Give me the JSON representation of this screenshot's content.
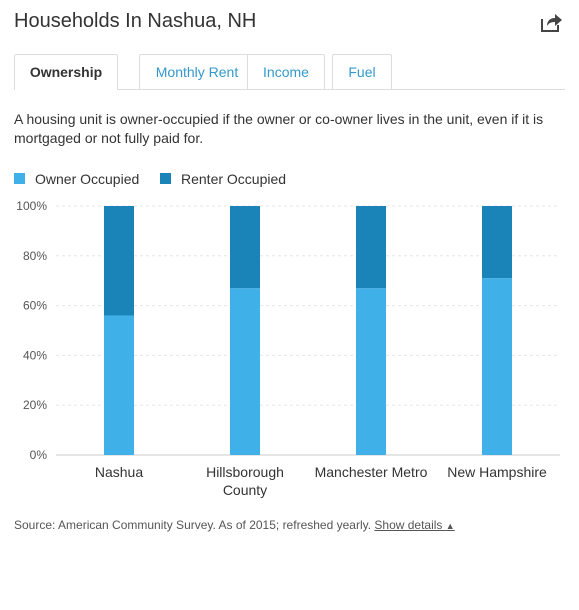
{
  "header": {
    "title": "Households In Nashua, NH",
    "share_icon": "share-icon"
  },
  "tabs": [
    {
      "label": "Ownership",
      "active": true
    },
    {
      "label": "Monthly Rent",
      "active": false
    },
    {
      "label": "Income",
      "active": false
    },
    {
      "label": "Fuel",
      "active": false
    }
  ],
  "description": "A housing unit is owner-occupied if the owner or co-owner lives in the unit, even if it is mortgaged or not fully paid for.",
  "colors": {
    "owner": "#3fb1e8",
    "renter": "#1a84b8",
    "link": "#3399cc"
  },
  "chart_data": {
    "type": "bar",
    "stacked": true,
    "categories": [
      "Nashua",
      "Hillsborough County",
      "Manchester Metro",
      "New Hampshire"
    ],
    "category_lines": [
      [
        "Nashua"
      ],
      [
        "Hillsborough",
        "County"
      ],
      [
        "Manchester Metro"
      ],
      [
        "New Hampshire"
      ]
    ],
    "series": [
      {
        "name": "Owner Occupied",
        "values": [
          56,
          67,
          67,
          71
        ]
      },
      {
        "name": "Renter Occupied",
        "values": [
          44,
          33,
          33,
          29
        ]
      }
    ],
    "ylim": [
      0,
      100
    ],
    "yticks": [
      "0%",
      "20%",
      "40%",
      "60%",
      "80%",
      "100%"
    ],
    "grid": true,
    "legend_position": "top-left"
  },
  "footer": {
    "source_text": "Source: American Community Survey. As of 2015; refreshed yearly.",
    "show_details_label": "Show details",
    "caret": "▲"
  }
}
